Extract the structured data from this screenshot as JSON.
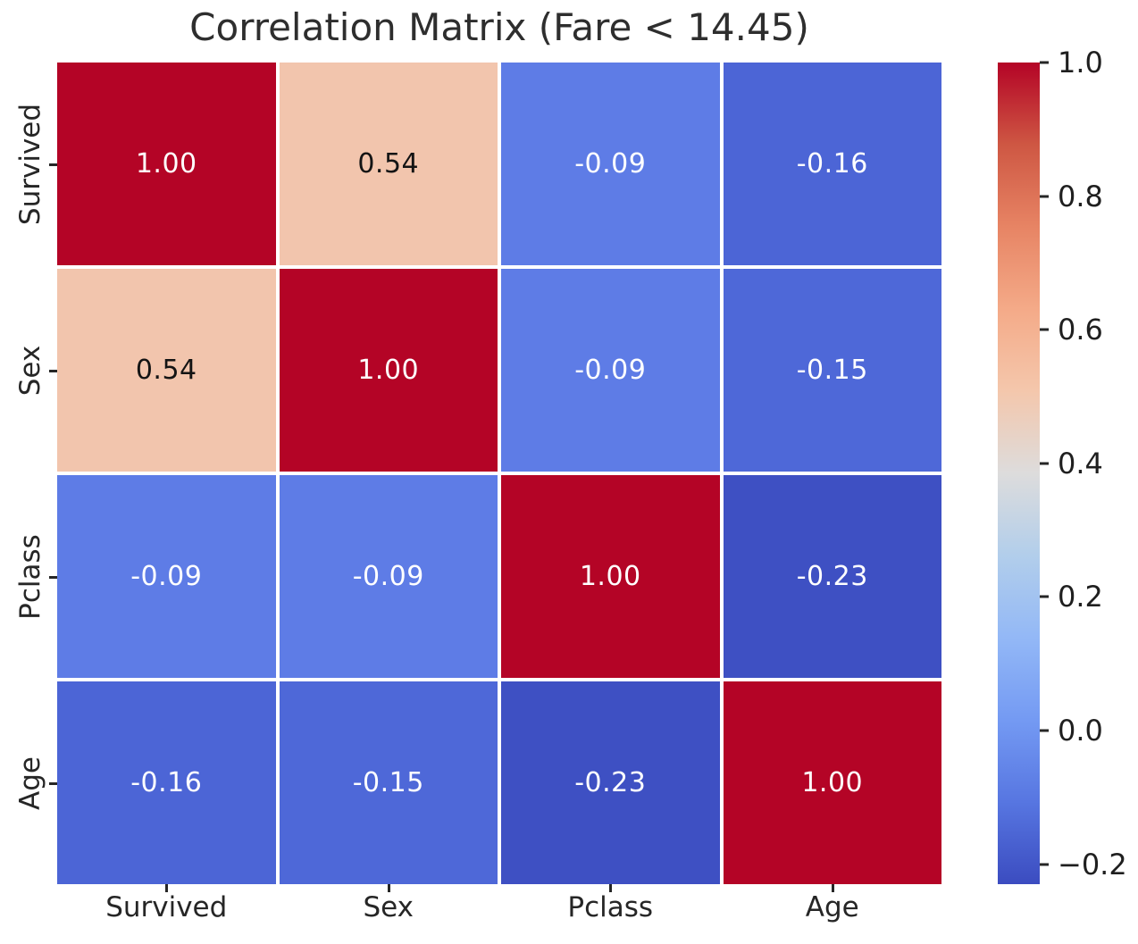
{
  "title": "Correlation Matrix (Fare < 14.45)",
  "chart_data": {
    "type": "heatmap",
    "title": "Correlation Matrix (Fare < 14.45)",
    "x_labels": [
      "Survived",
      "Sex",
      "Pclass",
      "Age"
    ],
    "y_labels": [
      "Survived",
      "Sex",
      "Pclass",
      "Age"
    ],
    "matrix": [
      [
        1.0,
        0.54,
        -0.09,
        -0.16
      ],
      [
        0.54,
        1.0,
        -0.09,
        -0.15
      ],
      [
        -0.09,
        -0.09,
        1.0,
        -0.23
      ],
      [
        -0.16,
        -0.15,
        -0.23,
        1.0
      ]
    ],
    "cell_labels": [
      [
        "1.00",
        "0.54",
        "-0.09",
        "-0.16"
      ],
      [
        "0.54",
        "1.00",
        "-0.09",
        "-0.15"
      ],
      [
        "-0.09",
        "-0.09",
        "1.00",
        "-0.23"
      ],
      [
        "-0.16",
        "-0.15",
        "-0.23",
        "1.00"
      ]
    ],
    "cell_colors": [
      [
        "#b40426",
        "#f2c5ad",
        "#5e7ce6",
        "#4c65d6"
      ],
      [
        "#f2c5ad",
        "#b40426",
        "#5e7ce6",
        "#4e68d8"
      ],
      [
        "#5e7ce6",
        "#5e7ce6",
        "#b40426",
        "#3e50c3"
      ],
      [
        "#4c65d6",
        "#4e68d8",
        "#3e50c3",
        "#b40426"
      ]
    ],
    "cell_text_colors": [
      [
        "#ffffff",
        "#141414",
        "#ffffff",
        "#ffffff"
      ],
      [
        "#141414",
        "#ffffff",
        "#ffffff",
        "#ffffff"
      ],
      [
        "#ffffff",
        "#ffffff",
        "#ffffff",
        "#ffffff"
      ],
      [
        "#ffffff",
        "#ffffff",
        "#ffffff",
        "#ffffff"
      ]
    ],
    "colormap": "coolwarm",
    "vmin": -0.23,
    "vmax": 1.0,
    "grid_line_color": "#ffffff",
    "colorbar": {
      "position": "right",
      "ticks": [
        {
          "value": 1.0,
          "label": "1.0"
        },
        {
          "value": 0.8,
          "label": "0.8"
        },
        {
          "value": 0.6,
          "label": "0.6"
        },
        {
          "value": 0.4,
          "label": "0.4"
        },
        {
          "value": 0.2,
          "label": "0.2"
        },
        {
          "value": 0.0,
          "label": "0.0"
        },
        {
          "value": -0.2,
          "label": "−0.2"
        }
      ],
      "gradient_stops_bottom_to_top": [
        "#3b4cc0",
        "#5776e1",
        "#749af3",
        "#93b8f6",
        "#b2ceeb",
        "#dddcdc",
        "#f4c7ac",
        "#f4aa88",
        "#e78464",
        "#ce5743",
        "#b40426"
      ]
    }
  }
}
